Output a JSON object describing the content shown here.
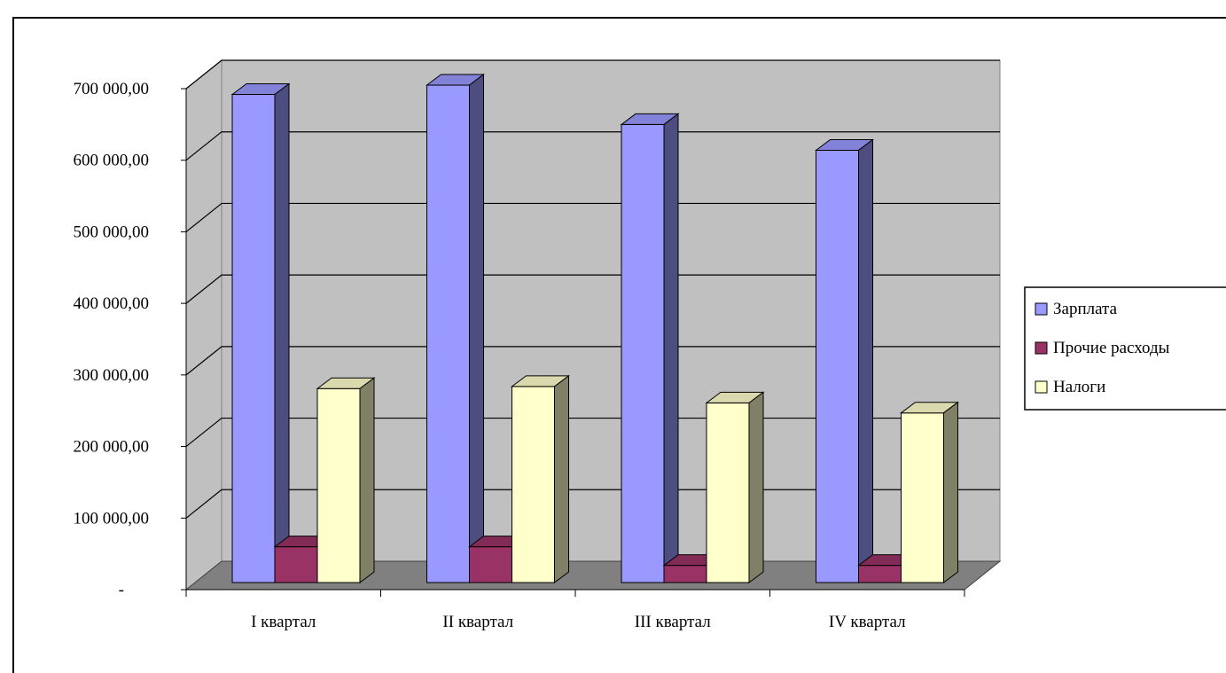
{
  "chart_data": {
    "type": "bar",
    "categories": [
      "I квартал",
      "II квартал",
      "III квартал",
      "IV квартал"
    ],
    "series": [
      {
        "name": "Зарплата",
        "values": [
          682000,
          695000,
          640000,
          604000
        ],
        "color": "#9999ff"
      },
      {
        "name": "Прочие расходы",
        "values": [
          50000,
          50000,
          24000,
          24000
        ],
        "color": "#993366"
      },
      {
        "name": "Налоги",
        "values": [
          271000,
          274000,
          251000,
          237000
        ],
        "color": "#ffffcc"
      }
    ],
    "ylim": [
      0,
      700000
    ],
    "yticks": [
      "-",
      "100 000,00",
      "200 000,00",
      "300 000,00",
      "400 000,00",
      "500 000,00",
      "600 000,00",
      "700 000,00"
    ],
    "grid": true,
    "legend_position": "right",
    "style": "3d-column"
  }
}
